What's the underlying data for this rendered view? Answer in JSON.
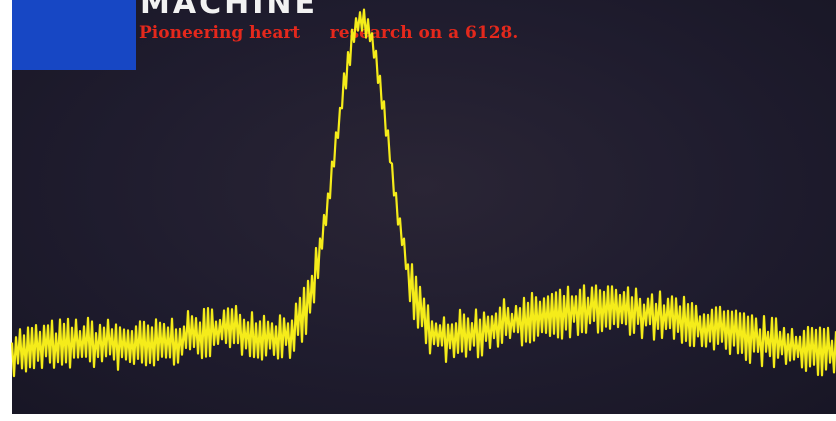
{
  "header": {
    "partial_heading": "MACHINE",
    "caption": "Pioneering heart     research on a 6128."
  },
  "colors": {
    "screen_background": "#1f1c2e",
    "trace": "#f5ec1a",
    "caption": "#e4281c",
    "block": "#1747c4"
  }
}
